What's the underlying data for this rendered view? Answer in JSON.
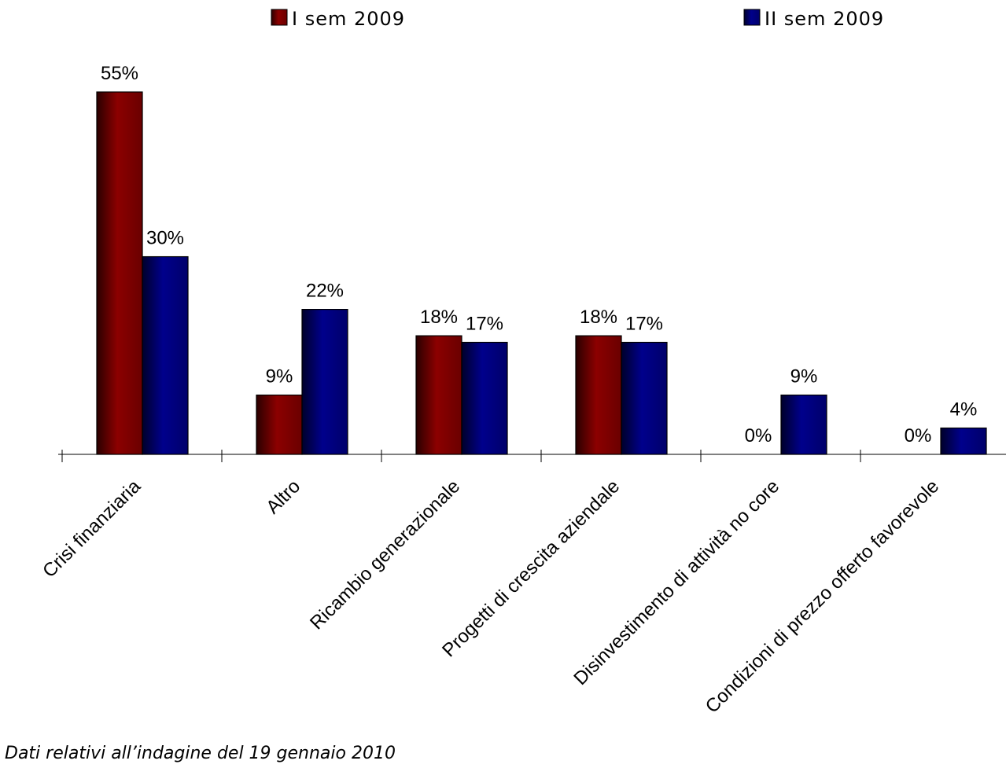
{
  "chart_data": {
    "type": "bar",
    "categories": [
      "Crisi finanziaria",
      "Altro",
      "Ricambio generazionale",
      "Progetti di crescita aziendale",
      "Disinvestimento di attività no core",
      "Condizioni di prezzo offerto favorevole"
    ],
    "series": [
      {
        "name": "I sem 2009",
        "values": [
          55,
          9,
          18,
          18,
          0,
          0
        ],
        "labels": [
          "55%",
          "9%",
          "18%",
          "18%",
          "0%",
          "0%"
        ],
        "color": "#800000"
      },
      {
        "name": "II sem 2009",
        "values": [
          30,
          22,
          17,
          17,
          9,
          4
        ],
        "labels": [
          "30%",
          "22%",
          "17%",
          "17%",
          "9%",
          "4%"
        ],
        "color": "#000080"
      }
    ],
    "ylim": [
      0,
      55
    ],
    "legend_position": "top",
    "grid": false
  },
  "footnote": "Dati relativi all’indagine del 19 gennaio 2010"
}
